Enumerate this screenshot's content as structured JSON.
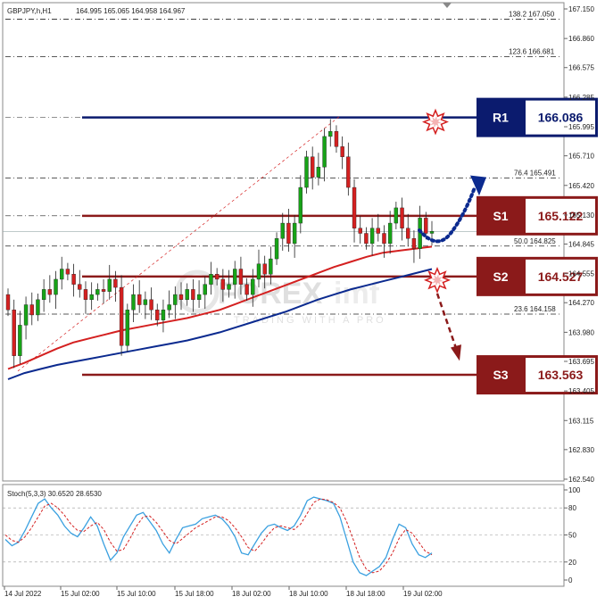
{
  "header": {
    "symbol": "GBPJPY,h,H1",
    "ohlc": "164.995 165.065 164.958 164.967"
  },
  "watermark": {
    "brand_prefix": "FOREX",
    "brand_suffix": "imf",
    "tagline": "TRADING WITH A PRO"
  },
  "colors": {
    "r1": "#0b1b6e",
    "support": "#8b1a1a",
    "ma_fast": "#d42020",
    "ma_slow": "#0b2a8f",
    "bull": "#17a317",
    "bear": "#d42020",
    "stoch_main": "#3aa0e0",
    "stoch_signal": "#d42020"
  },
  "levels": [
    {
      "key": "R1",
      "label": "R1",
      "value": "166.086",
      "price": 166.086,
      "style": "dark-navy"
    },
    {
      "key": "S1",
      "label": "S1",
      "value": "165.122",
      "price": 165.122,
      "style": "dark-red"
    },
    {
      "key": "S2",
      "label": "S2",
      "value": "164.527",
      "price": 164.527,
      "style": "dark-red"
    },
    {
      "key": "S3",
      "label": "S3",
      "value": "163.563",
      "price": 163.563,
      "style": "dark-red"
    }
  ],
  "fib_levels": [
    {
      "label": "138.2",
      "price_text": "167.050",
      "price": 167.05
    },
    {
      "label": "123.6",
      "price_text": "166.681",
      "price": 166.681
    },
    {
      "label": "76.4",
      "price_text": "165.491",
      "price": 165.491
    },
    {
      "label": "50.0",
      "price_text": "164.825",
      "price": 164.825
    },
    {
      "label": "23.6",
      "price_text": "164.158",
      "price": 164.158
    }
  ],
  "chart_data": {
    "type": "candlestick",
    "title": "GBPJPY,h,H1",
    "y_ticks": [
      "167.150",
      "166.860",
      "166.575",
      "166.285",
      "165.995",
      "165.710",
      "165.420",
      "165.130",
      "164.845",
      "164.555",
      "164.270",
      "163.980",
      "163.695",
      "163.405",
      "163.115",
      "162.830",
      "162.540"
    ],
    "ylim": [
      162.54,
      167.15
    ],
    "x_ticks": [
      "14 Jul 2022",
      "15 Jul 02:00",
      "15 Jul 10:00",
      "15 Jul 18:00",
      "18 Jul 02:00",
      "18 Jul 10:00",
      "18 Jul 18:00",
      "19 Jul 02:00"
    ],
    "close_series": [
      164.2,
      163.75,
      164.05,
      164.25,
      164.15,
      164.3,
      164.4,
      164.35,
      164.5,
      164.6,
      164.55,
      164.45,
      164.4,
      164.3,
      164.35,
      164.4,
      164.38,
      164.5,
      164.42,
      163.85,
      164.2,
      164.35,
      164.25,
      164.3,
      164.2,
      164.1,
      164.2,
      164.25,
      164.35,
      164.3,
      164.4,
      164.3,
      164.35,
      164.45,
      164.55,
      164.5,
      164.4,
      164.45,
      164.6,
      164.45,
      164.35,
      164.5,
      164.65,
      164.55,
      164.7,
      164.9,
      165.05,
      164.85,
      165.05,
      165.4,
      165.7,
      165.5,
      165.6,
      165.9,
      165.95,
      165.8,
      165.7,
      165.4,
      165.0,
      164.95,
      164.85,
      165.0,
      164.95,
      164.85,
      165.05,
      165.2,
      165.0,
      164.9,
      164.8,
      165.1,
      164.95,
      164.97
    ],
    "ma_fast": [
      163.62,
      163.68,
      163.75,
      163.82,
      163.88,
      163.92,
      163.96,
      164.0,
      164.03,
      164.06,
      164.09,
      164.12,
      164.16,
      164.2,
      164.26,
      164.32,
      164.38,
      164.44,
      164.5,
      164.56,
      164.62,
      164.67,
      164.72,
      164.76,
      164.78,
      164.8,
      164.82
    ],
    "ma_slow": [
      163.52,
      163.58,
      163.62,
      163.66,
      163.69,
      163.72,
      163.75,
      163.78,
      163.81,
      163.84,
      163.87,
      163.9,
      163.94,
      163.98,
      164.03,
      164.08,
      164.13,
      164.18,
      164.24,
      164.3,
      164.35,
      164.4,
      164.44,
      164.48,
      164.52,
      164.56,
      164.6
    ],
    "annotations": {
      "resistance_burst": "R1",
      "support_burst": "S2",
      "arrows": [
        "up-dotted-blue",
        "down-dashed-red"
      ]
    },
    "stochastic": {
      "label": "Stoch(5,3,3) 30.6520 28.6530",
      "main_value": 30.652,
      "signal_value": 28.653,
      "y_ticks": [
        "100",
        "80",
        "50",
        "20",
        "0"
      ],
      "ylim": [
        0,
        100
      ],
      "main": [
        45,
        38,
        42,
        55,
        70,
        85,
        90,
        80,
        72,
        60,
        52,
        48,
        58,
        70,
        60,
        40,
        22,
        30,
        48,
        60,
        72,
        75,
        65,
        55,
        40,
        30,
        45,
        58,
        60,
        62,
        68,
        70,
        72,
        68,
        60,
        48,
        30,
        28,
        40,
        52,
        60,
        62,
        58,
        55,
        60,
        72,
        88,
        92,
        90,
        88,
        85,
        70,
        45,
        20,
        8,
        5,
        10,
        15,
        25,
        45,
        62,
        58,
        40,
        28,
        25,
        30
      ],
      "signal": [
        50,
        44,
        42,
        48,
        58,
        70,
        82,
        85,
        80,
        72,
        62,
        55,
        54,
        60,
        64,
        56,
        42,
        32,
        34,
        46,
        60,
        70,
        71,
        64,
        54,
        44,
        40,
        46,
        52,
        58,
        62,
        66,
        70,
        70,
        66,
        58,
        48,
        36,
        32,
        40,
        50,
        58,
        60,
        58,
        56,
        62,
        74,
        86,
        90,
        89,
        86,
        80,
        65,
        45,
        25,
        12,
        8,
        10,
        18,
        30,
        46,
        56,
        52,
        42,
        32,
        28
      ]
    }
  }
}
